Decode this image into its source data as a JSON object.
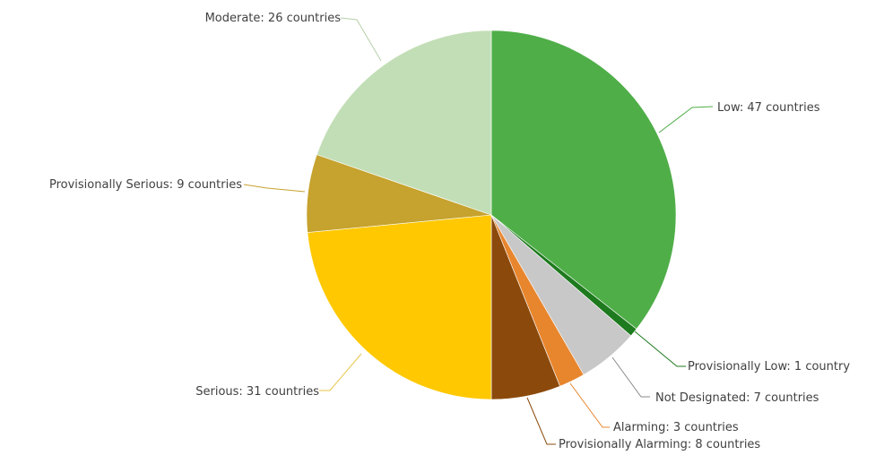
{
  "chart_data": {
    "type": "pie",
    "legend": "none",
    "slices": [
      {
        "label": "Low: 47 countries",
        "category": "Low",
        "value": 47,
        "color": "#4FAE48"
      },
      {
        "label": "Provisionally Low: 1 country",
        "category": "Provisionally Low",
        "value": 1,
        "color": "#1E7A1E"
      },
      {
        "label": "Not Designated: 7 countries",
        "category": "Not Designated",
        "value": 7,
        "color": "#C8C8C8"
      },
      {
        "label": "Alarming: 3 countries",
        "category": "Alarming",
        "value": 3,
        "color": "#E8862E"
      },
      {
        "label": "Provisionally Alarming: 8 countries",
        "category": "Provisionally Alarming",
        "value": 8,
        "color": "#8B4A0C"
      },
      {
        "label": "Serious: 31 countries",
        "category": "Serious",
        "value": 31,
        "color": "#FFC800"
      },
      {
        "label": "Provisionally Serious: 9 countries",
        "category": "Provisionally Serious",
        "value": 9,
        "color": "#C6A22E"
      },
      {
        "label": "Moderate: 26 countries",
        "category": "Moderate",
        "value": 26,
        "color": "#C2DEB6"
      }
    ]
  }
}
